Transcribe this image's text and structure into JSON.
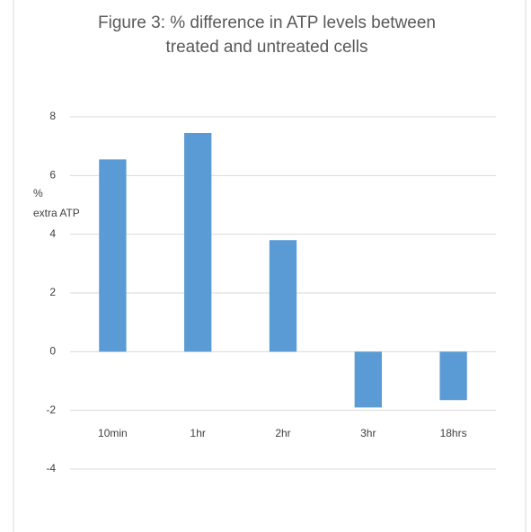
{
  "chart_data": {
    "type": "bar",
    "title": [
      "Figure 3: % difference in ATP levels between",
      "treated and untreated cells"
    ],
    "y_label": [
      "%",
      "extra ATP"
    ],
    "categories": [
      "10min",
      "1hr",
      "2hr",
      "3hr",
      "18hrs"
    ],
    "values": [
      6.55,
      7.45,
      3.8,
      -1.9,
      -1.65
    ],
    "color": "#5b9bd5",
    "ylim": [
      -4,
      8
    ],
    "yticks": [
      -4,
      -2,
      0,
      2,
      4,
      6,
      8
    ],
    "grid": true
  }
}
